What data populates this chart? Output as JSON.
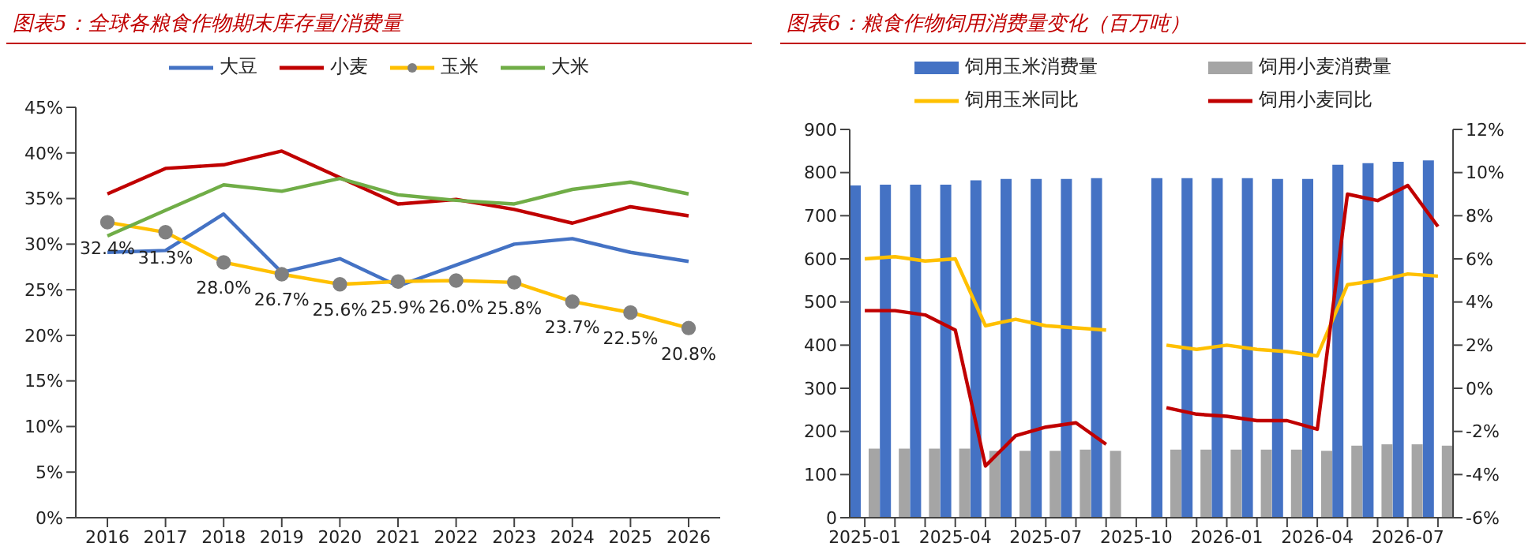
{
  "chart_data": [
    {
      "type": "line",
      "title": "图表5：全球各粮食作物期末库存量/消费量",
      "categories": [
        "2016",
        "2017",
        "2018",
        "2019",
        "2020",
        "2021",
        "2022",
        "2023",
        "2024",
        "2025",
        "2026"
      ],
      "series": [
        {
          "name": "大豆",
          "color": "#4472c4",
          "values": [
            29.1,
            29.3,
            33.3,
            26.9,
            28.4,
            25.4,
            27.7,
            30.0,
            30.6,
            29.1,
            28.1
          ]
        },
        {
          "name": "小麦",
          "color": "#c00000",
          "values": [
            35.5,
            38.3,
            38.7,
            40.2,
            37.3,
            34.4,
            34.9,
            33.8,
            32.3,
            34.1,
            33.1
          ]
        },
        {
          "name": "玉米",
          "color": "#ffc000",
          "marker": "circle",
          "values": [
            32.4,
            31.3,
            28.0,
            26.7,
            25.6,
            25.9,
            26.0,
            25.8,
            23.7,
            22.5,
            20.8
          ],
          "value_labels": [
            "32.4%",
            "31.3%",
            "28.0%",
            "26.7%",
            "25.6%",
            "25.9%",
            "26.0%",
            "25.8%",
            "23.7%",
            "22.5%",
            "20.8%"
          ]
        },
        {
          "name": "大米",
          "color": "#70ad47",
          "values": [
            30.9,
            33.7,
            36.5,
            35.8,
            37.2,
            35.4,
            34.8,
            34.4,
            36.0,
            36.8,
            35.5
          ]
        }
      ],
      "ylim": [
        0,
        45
      ],
      "yticks": [
        {
          "value": 0,
          "label": "0%"
        },
        {
          "value": 5,
          "label": "5%"
        },
        {
          "value": 10,
          "label": "10%"
        },
        {
          "value": 15,
          "label": "15%"
        },
        {
          "value": 20,
          "label": "20%"
        },
        {
          "value": 25,
          "label": "25%"
        },
        {
          "value": 30,
          "label": "30%"
        },
        {
          "value": 35,
          "label": "35%"
        },
        {
          "value": 40,
          "label": "40%"
        },
        {
          "value": 45,
          "label": "45%"
        }
      ],
      "grid": false,
      "legend": "top",
      "line_style": "solid"
    },
    {
      "type": "bar",
      "title": "图表6：粮食作物饲用消费量变化（百万吨）",
      "categories": [
        "2025-01",
        null,
        null,
        "2025-04",
        null,
        null,
        "2025-07",
        null,
        null,
        "2025-10",
        null,
        null,
        "2026-01",
        null,
        null,
        "2026-04",
        null,
        null,
        "2026-07",
        null
      ],
      "series": [
        {
          "name": "饲用玉米消费量",
          "type": "bar",
          "color": "#4472c4",
          "values": [
            770,
            772,
            772,
            772,
            782,
            785,
            785,
            785,
            787,
            null,
            787,
            787,
            787,
            787,
            785,
            785,
            818,
            822,
            825,
            828
          ]
        },
        {
          "name": "饲用小麦消费量",
          "type": "bar",
          "color": "#a5a5a5",
          "values": [
            160,
            160,
            160,
            160,
            155,
            155,
            155,
            158,
            155,
            null,
            158,
            158,
            158,
            158,
            158,
            155,
            167,
            170,
            170,
            167
          ]
        },
        {
          "name": "饲用玉米同比",
          "type": "line",
          "axis": "y2",
          "color": "#ffc000",
          "values": [
            6.0,
            6.1,
            5.9,
            6.0,
            2.9,
            3.2,
            2.9,
            2.8,
            2.7,
            null,
            2.0,
            1.8,
            2.0,
            1.8,
            1.7,
            1.5,
            4.8,
            5.0,
            5.3,
            5.2
          ]
        },
        {
          "name": "饲用小麦同比",
          "type": "line",
          "axis": "y2",
          "color": "#c00000",
          "values": [
            3.6,
            3.6,
            3.4,
            2.7,
            -3.6,
            -2.2,
            -1.8,
            -1.6,
            -2.6,
            null,
            -0.9,
            -1.2,
            -1.3,
            -1.5,
            -1.5,
            -1.9,
            9.0,
            8.7,
            9.4,
            7.5
          ]
        }
      ],
      "ylim": [
        0,
        900
      ],
      "yticks": [
        0,
        100,
        200,
        300,
        400,
        500,
        600,
        700,
        800,
        900
      ],
      "y2lim": [
        -6,
        12
      ],
      "y2ticks": [
        {
          "value": -6,
          "label": "-6%"
        },
        {
          "value": -4,
          "label": "-4%"
        },
        {
          "value": -2,
          "label": "-2%"
        },
        {
          "value": 0,
          "label": "0%"
        },
        {
          "value": 2,
          "label": "2%"
        },
        {
          "value": 4,
          "label": "4%"
        },
        {
          "value": 6,
          "label": "6%"
        },
        {
          "value": 8,
          "label": "8%"
        },
        {
          "value": 10,
          "label": "10%"
        },
        {
          "value": 12,
          "label": "12%"
        }
      ],
      "grid": false,
      "legend": "top",
      "line_style": "solid"
    }
  ]
}
